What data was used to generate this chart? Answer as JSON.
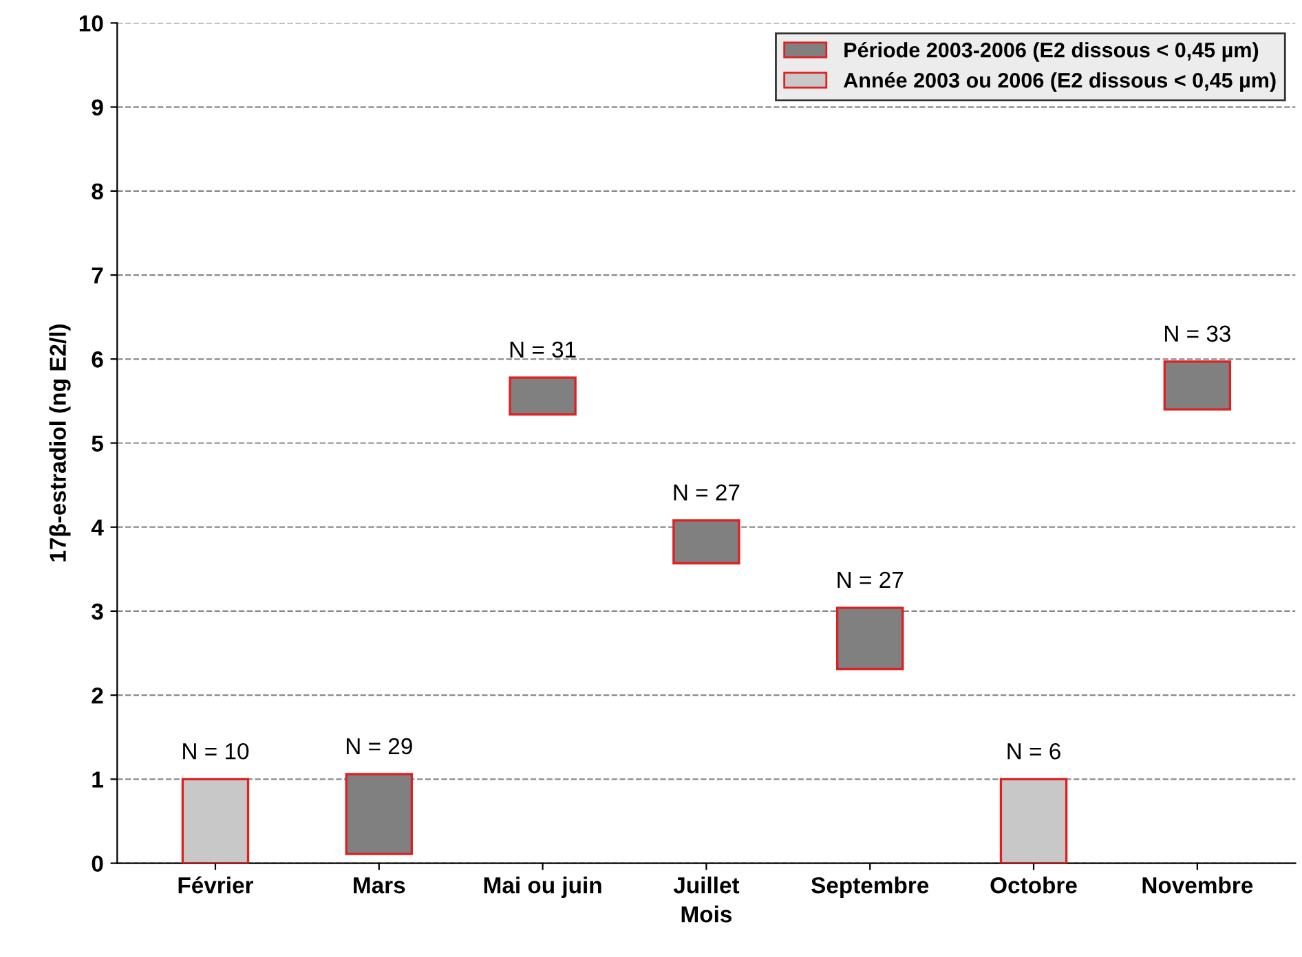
{
  "chart_data": {
    "type": "bar",
    "xlabel": "Mois",
    "ylabel": "17β-estradiol (ng E2/l)",
    "categories": [
      "Février",
      "Mars",
      "Mai ou juin",
      "Juillet",
      "Septembre",
      "Octobre",
      "Novembre"
    ],
    "series": [
      {
        "name": "Période 2003-2006 (E2 dissous < 0,45 µm)",
        "color": "#808080",
        "base": [
          null,
          0.11,
          5.34,
          3.57,
          2.31,
          null,
          5.4
        ],
        "values": [
          null,
          0.95,
          0.44,
          0.51,
          0.73,
          null,
          0.57
        ]
      },
      {
        "name": "Année 2003 ou 2006 (E2 dissous < 0,45 µm)",
        "color": "#c8c8c8",
        "base": [
          0,
          null,
          null,
          null,
          null,
          0,
          null
        ],
        "values": [
          1,
          null,
          null,
          null,
          null,
          1,
          null
        ]
      }
    ],
    "annotations": [
      {
        "text": "N = 10",
        "x": "Février",
        "y": 1
      },
      {
        "text": "N = 29",
        "x": "Mars",
        "y": 1.06
      },
      {
        "text": "N = 31",
        "x": "Mai ou juin",
        "y": 5.78
      },
      {
        "text": "N = 27",
        "x": "Juillet",
        "y": 4.08
      },
      {
        "text": "N = 27",
        "x": "Septembre",
        "y": 3.04
      },
      {
        "text": "N = 6",
        "x": "Octobre",
        "y": 1
      },
      {
        "text": "N = 33",
        "x": "Novembre",
        "y": 5.97
      }
    ],
    "ylim": [
      0,
      10
    ],
    "yticks": [
      0,
      1,
      2,
      3,
      4,
      5,
      6,
      7,
      8,
      9,
      10
    ],
    "grid": "y",
    "legend": "top right"
  }
}
